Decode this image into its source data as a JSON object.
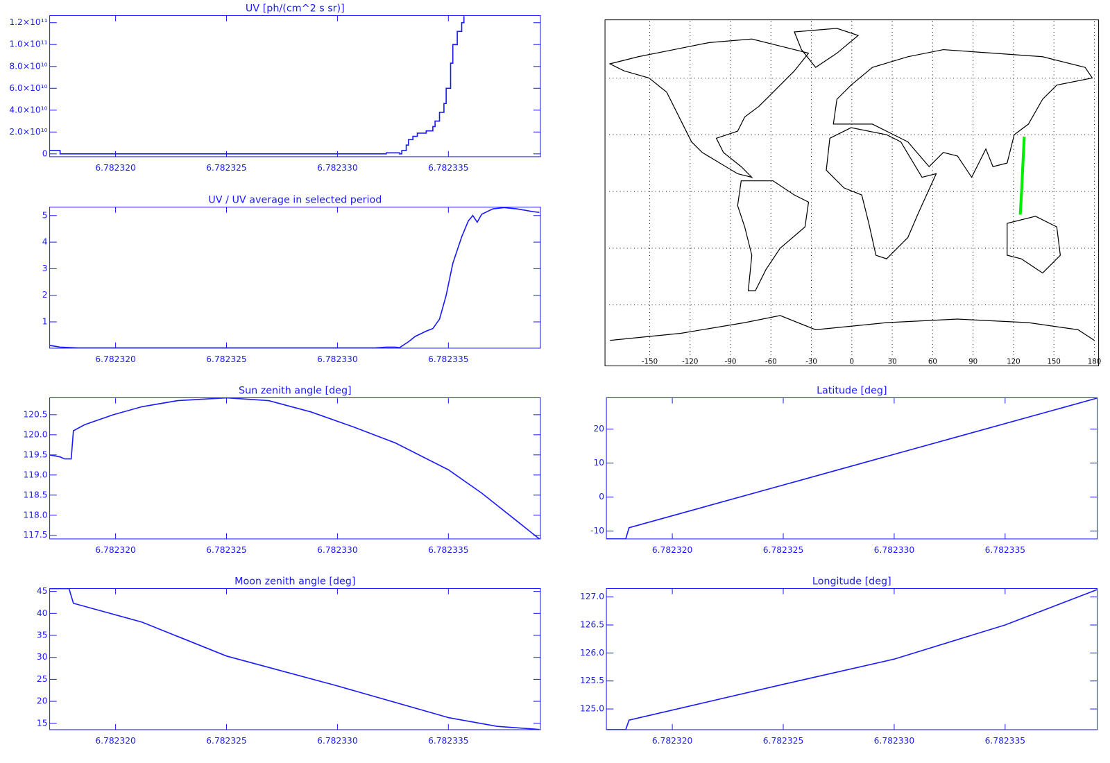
{
  "chart_data": [
    {
      "type": "line",
      "title": "UV [ph/(cm^2 s sr)]",
      "color": "#1a1aff",
      "step": true,
      "x": [
        6.782317,
        6.7823175,
        6.7823317,
        6.7823322,
        6.7823327,
        6.7823328,
        6.7823329,
        6.7823331,
        6.7823332,
        6.7823334,
        6.7823336,
        6.782334,
        6.7823343,
        6.7823344,
        6.7823346,
        6.7823348,
        6.7823349,
        6.7823351,
        6.7823352,
        6.7823354,
        6.7823356,
        6.7823357
      ],
      "values": [
        3000000000,
        0,
        0,
        1000000000,
        1000000000,
        0,
        3000000000,
        8000000000,
        13000000000,
        16000000000,
        19000000000,
        21000000000,
        25000000000,
        30000000000,
        38000000000,
        46000000000,
        60000000000,
        83000000000,
        100000000000,
        112000000000,
        120000000000,
        126000000000
      ],
      "xlim": [
        6.78231703,
        6.78233915
      ],
      "xticks": [
        {
          "value": 6.78232,
          "label": "6.782320"
        },
        6.782325,
        {
          "value": 6.78233,
          "label": "6.782330"
        },
        6.782335
      ],
      "ylim": [
        -2600000000,
        126500000000
      ],
      "yticks": [
        0,
        {
          "value": 20000000000,
          "label": "2.0×10¹⁰"
        },
        {
          "value": 40000000000,
          "label": "4.0×10¹⁰"
        },
        {
          "value": 60000000000,
          "label": "6.0×10¹⁰"
        },
        {
          "value": 80000000000,
          "label": "8.0×10¹⁰"
        },
        {
          "value": 100000000000,
          "label": "1.0×10¹¹"
        },
        {
          "value": 120000000000,
          "label": "1.2×10¹¹"
        }
      ]
    },
    {
      "type": "line",
      "title": "UV / UV average in selected period",
      "color": "#1a1aff",
      "step": false,
      "x": [
        6.782317,
        6.7823175,
        6.7823183,
        6.7823317,
        6.7823322,
        6.7823326,
        6.7823328,
        6.7823332,
        6.7823335,
        6.782334,
        6.7823343,
        6.7823346,
        6.7823349,
        6.7823352,
        6.7823356,
        6.7823359,
        6.7823361,
        6.7823363,
        6.7823365,
        6.782337,
        6.7823375,
        6.7823381,
        6.7823388,
        6.7823391
      ],
      "values": [
        0.12,
        0.05,
        0.02,
        0.02,
        0.05,
        0.05,
        0.03,
        0.25,
        0.45,
        0.65,
        0.75,
        1.1,
        2.0,
        3.2,
        4.2,
        4.8,
        5.0,
        4.75,
        5.05,
        5.25,
        5.3,
        5.25,
        5.15,
        5.12
      ],
      "xlim": [
        6.78231703,
        6.78233915
      ],
      "xticks": [
        {
          "value": 6.78232,
          "label": "6.782320"
        },
        6.782325,
        {
          "value": 6.78233,
          "label": "6.782330"
        },
        6.782335
      ],
      "ylim": [
        0.01,
        5.32
      ],
      "yticks": [
        1,
        2,
        3,
        4,
        5
      ]
    },
    {
      "type": "line",
      "title": "Sun zenith angle [deg]",
      "color": "#1a1aff",
      "step": false,
      "x": [
        6.782317,
        6.7823175,
        6.7823177,
        6.782318,
        6.7823181,
        6.7823186,
        6.7823199,
        6.7823212,
        6.7823228,
        6.782325,
        6.7823269,
        6.7823288,
        6.7823307,
        6.7823326,
        6.782335,
        6.7823365,
        6.7823381,
        6.7823391
      ],
      "values": [
        119.5,
        119.45,
        119.4,
        119.4,
        120.1,
        120.25,
        120.5,
        120.7,
        120.85,
        120.92,
        120.85,
        120.57,
        120.2,
        119.8,
        119.13,
        118.55,
        117.85,
        117.41
      ],
      "xlim": [
        6.78231703,
        6.78233915
      ],
      "xticks": [
        {
          "value": 6.78232,
          "label": "6.782320"
        },
        6.782325,
        {
          "value": 6.78233,
          "label": "6.782330"
        },
        6.782335
      ],
      "ylim": [
        117.41,
        120.92
      ],
      "yticks": [
        117.5,
        {
          "value": 118,
          "label": "118.0"
        },
        118.5,
        {
          "value": 119,
          "label": "119.0"
        },
        119.5,
        {
          "value": 120,
          "label": "120.0"
        },
        120.5
      ]
    },
    {
      "type": "line",
      "title": "Moon zenith angle [deg]",
      "color": "#1a1aff",
      "step": false,
      "x": [
        6.782317,
        6.7823179,
        6.7823181,
        6.7823212,
        6.782325,
        6.78233,
        6.782335,
        6.7823372,
        6.7823391
      ],
      "values": [
        45.65,
        45.65,
        42.3,
        38,
        30.3,
        23.5,
        16.3,
        14.3,
        13.6
      ],
      "xlim": [
        6.78231703,
        6.78233915
      ],
      "xticks": [
        {
          "value": 6.78232,
          "label": "6.782320"
        },
        6.782325,
        {
          "value": 6.78233,
          "label": "6.782330"
        },
        6.782335
      ],
      "ylim": [
        13.55,
        45.65
      ],
      "yticks": [
        15,
        20,
        25,
        30,
        35,
        40,
        45
      ]
    },
    {
      "type": "map",
      "color": "#00ee00",
      "grid": true,
      "x": [
        125,
        126,
        127,
        128
      ],
      "values": [
        -12.3,
        0,
        15,
        29
      ],
      "xlim": [
        -180,
        180
      ],
      "ylim": [
        -90,
        90
      ],
      "xticks": [
        -150,
        -120,
        -90,
        -60,
        -30,
        0,
        30,
        60,
        90,
        120,
        150,
        180
      ],
      "ygrid": [
        -60,
        -30,
        0,
        30,
        60
      ]
    },
    {
      "type": "line",
      "title": "Latitude [deg]",
      "color": "#1a1aff",
      "step": false,
      "x": [
        6.78231703,
        6.7823179,
        6.78231805,
        6.78233914
      ],
      "values": [
        -12.3,
        -12.3,
        -9,
        29.1
      ],
      "xlim": [
        6.78231703,
        6.78233915
      ],
      "xticks": [
        {
          "value": 6.78232,
          "label": "6.782320"
        },
        6.782325,
        {
          "value": 6.78233,
          "label": "6.782330"
        },
        6.782335
      ],
      "ylim": [
        -12.3,
        29.2
      ],
      "yticks": [
        -10,
        0,
        10,
        20
      ]
    },
    {
      "type": "line",
      "title": "Longitude [deg]",
      "color": "#1a1aff",
      "step": false,
      "x": [
        6.78231703,
        6.7823179,
        6.78231805,
        6.782325,
        6.78233,
        6.782335,
        6.78233914
      ],
      "values": [
        124.63,
        124.63,
        124.8,
        125.44,
        125.89,
        126.5,
        127.13
      ],
      "xlim": [
        6.78231703,
        6.78233915
      ],
      "xticks": [
        {
          "value": 6.78232,
          "label": "6.782320"
        },
        6.782325,
        {
          "value": 6.78233,
          "label": "6.782330"
        },
        6.782335
      ],
      "ylim": [
        124.63,
        127.15
      ],
      "yticks": [
        {
          "value": 125,
          "label": "125.0"
        },
        125.5,
        {
          "value": 126,
          "label": "126.0"
        },
        126.5,
        {
          "value": 127,
          "label": "127.0"
        }
      ]
    }
  ]
}
